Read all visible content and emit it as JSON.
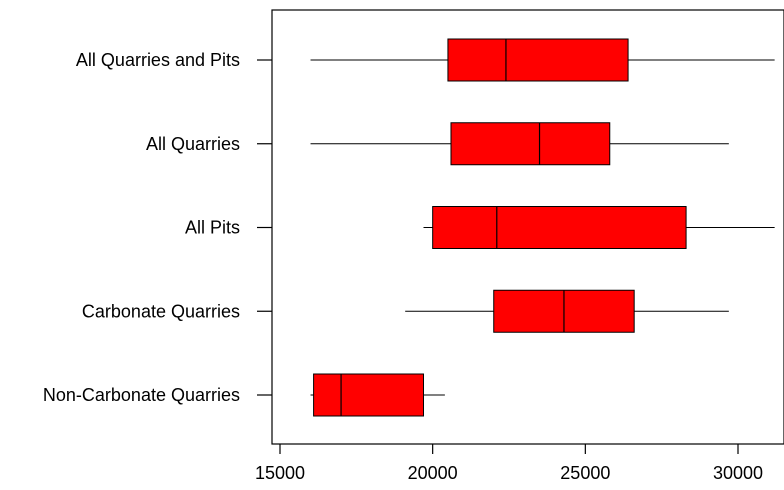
{
  "chart_data": {
    "type": "boxplot",
    "orientation": "horizontal",
    "title": "",
    "xlabel": "",
    "ylabel": "",
    "xlim": [
      14800,
      31200
    ],
    "x_ticks": [
      15000,
      20000,
      25000,
      30000
    ],
    "x_tick_labels": [
      "15000",
      "20000",
      "25000",
      "30000"
    ],
    "box_color": "#ff0000",
    "line_color": "#000000",
    "grid": false,
    "categories": [
      "All Quarries and Pits",
      "All Quarries",
      "All Pits",
      "Carbonate Quarries",
      "Non-Carbonate Quarries"
    ],
    "boxes": [
      {
        "category": "All Quarries and Pits",
        "whisker_low": 16000,
        "q1": 20500,
        "median": 22400,
        "q3": 26400,
        "whisker_high": 31200
      },
      {
        "category": "All Quarries",
        "whisker_low": 16000,
        "q1": 20600,
        "median": 23500,
        "q3": 25800,
        "whisker_high": 29700
      },
      {
        "category": "All Pits",
        "whisker_low": 19700,
        "q1": 20000,
        "median": 22100,
        "q3": 28300,
        "whisker_high": 31200
      },
      {
        "category": "Carbonate Quarries",
        "whisker_low": 19100,
        "q1": 22000,
        "median": 24300,
        "q3": 26600,
        "whisker_high": 29700
      },
      {
        "category": "Non-Carbonate Quarries",
        "whisker_low": 16000,
        "q1": 16100,
        "median": 17000,
        "q3": 19700,
        "whisker_high": 20400
      }
    ]
  }
}
